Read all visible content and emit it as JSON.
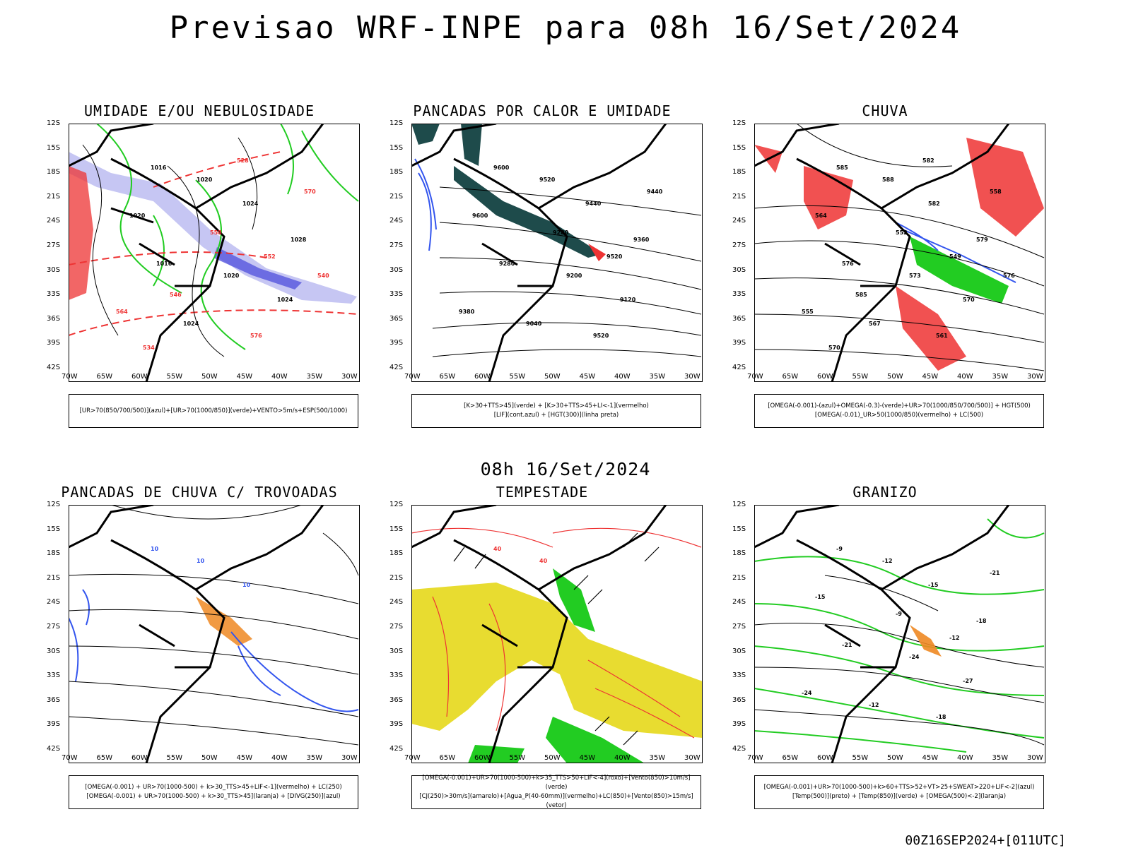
{
  "title": "Previsao WRF-INPE  para 08h 16/Set/2024",
  "mid_title": "08h 16/Set/2024",
  "footer": "00Z16SEP2024+[011UTC]",
  "lat_labels": [
    "12S",
    "15S",
    "18S",
    "21S",
    "24S",
    "27S",
    "30S",
    "33S",
    "36S",
    "39S",
    "42S"
  ],
  "lon_labels": [
    "70W",
    "65W",
    "60W",
    "55W",
    "50W",
    "45W",
    "40W",
    "35W",
    "30W"
  ],
  "colors": {
    "blue": "#3355ee",
    "green": "#22cc22",
    "red": "#ee3333",
    "orange": "#ee8822",
    "yellow": "#e8dc30",
    "darkteal": "#1e4b4b",
    "lavender": "#b8b8f0"
  },
  "panels": [
    {
      "title": "UMIDADE E/OU NEBULOSIDADE",
      "legend": [
        "[UR>70(850/700/500)](azul)+[UR>70(1000/850)](verde)+VENTO>5m/s+ESP(500/1000)"
      ],
      "contour_labels": [
        "1016",
        "1020",
        "1024",
        "1028",
        "1016",
        "1020",
        "1024",
        "1024",
        "1020",
        "576",
        "570",
        "564",
        "558",
        "552",
        "546",
        "540",
        "534",
        "528"
      ]
    },
    {
      "title": "PANCADAS POR CALOR E UMIDADE",
      "legend": [
        "[K>30+TTS>45](verde) + [K>30+TTS>45+LI<-1](vermelho)",
        "[LIF](cont.azul) + [HGT(300)](linha preta)"
      ],
      "contour_labels": [
        "9600",
        "9520",
        "9440",
        "9360",
        "9280",
        "9200",
        "9120",
        "9040",
        "9600",
        "9520",
        "9440",
        "9380",
        "9280",
        "9520"
      ]
    },
    {
      "title": "CHUVA",
      "legend": [
        "[OMEGA(-0.001)-(azul)+OMEGA(-0.3)-(verde)+UR>70(1000/850/700/500)] + HGT(500)",
        "[OMEGA(-0.01)_UR>50(1000/850)(vermelho) + LC(500)"
      ],
      "contour_labels": [
        "585",
        "588",
        "582",
        "579",
        "576",
        "573",
        "570",
        "567",
        "564",
        "561",
        "558",
        "555",
        "552",
        "549",
        "585",
        "576",
        "570",
        "582"
      ]
    },
    {
      "title": "PANCADAS DE CHUVA C/ TROVOADAS",
      "legend": [
        "[OMEGA(-0.001) + UR>70(1000-500) + k>30_TTS>45+LIF<-1](vermelho) + LC(250)",
        "[OMEGA(-0.001) + UR>70(1000-500) + k>30_TTS>45](laranja) + [DIVG(250)](azul)"
      ],
      "contour_labels": [
        "10",
        "10",
        "10"
      ]
    },
    {
      "title": "TEMPESTADE",
      "legend": [
        "[OMEGA(-0.001)+UR>70(1000-500)+k>35_TTS>50+LIF<-4](roxo)+[Vento(850)>10m/s](verde)",
        "[CJ(250)>30m/s](amarelo)+[Agua_P(40-60mm)](vermelho)+LC(850)+[Vento(850)>15m/s](vetor)"
      ],
      "contour_labels": [
        "40",
        "40"
      ]
    },
    {
      "title": "GRANIZO",
      "legend": [
        "[OMEGA(-0.001)+UR>70(1000-500)+k>60+TTS>52+VT>25+SWEAT>220+LIF<-2](azul)",
        "[Temp(500)](preto) + [Temp(850)](verde) + [OMEGA(500)<-2](laranja)"
      ],
      "contour_labels": [
        "-9",
        "-12",
        "-15",
        "-18",
        "-21",
        "-24",
        "-27",
        "-12",
        "-15",
        "-18",
        "-21",
        "-24",
        "-9",
        "-12"
      ]
    }
  ]
}
